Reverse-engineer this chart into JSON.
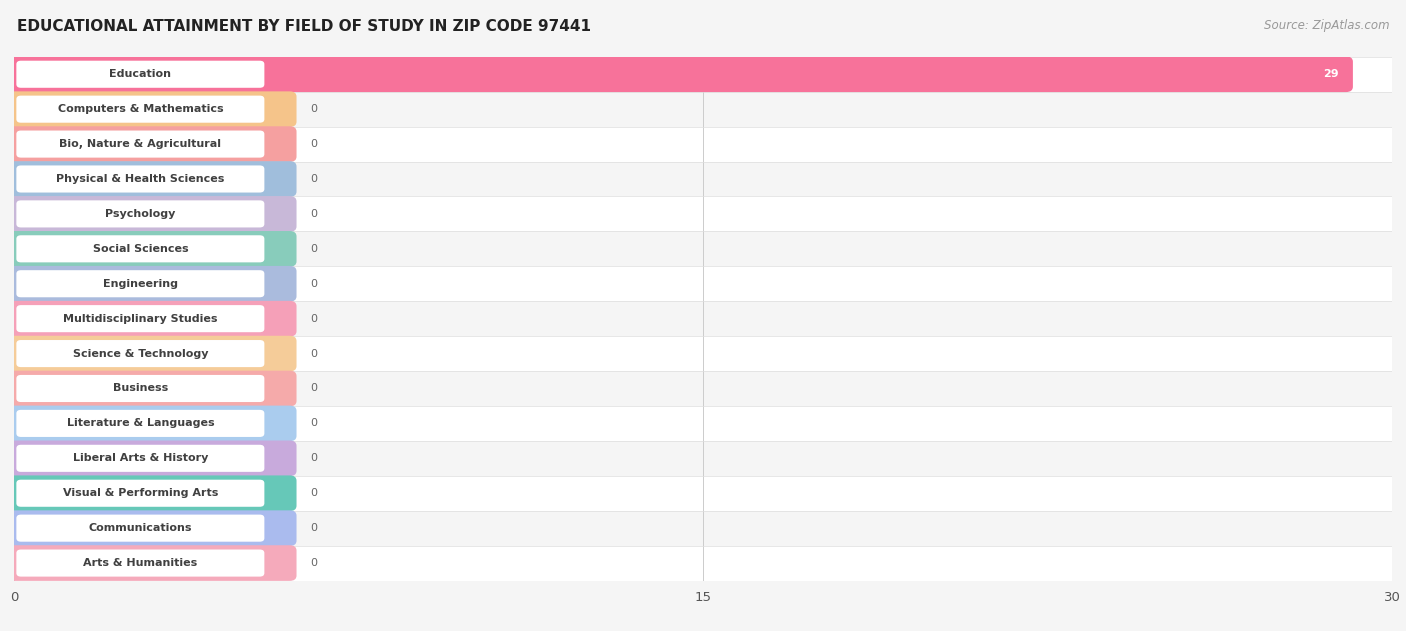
{
  "title": "EDUCATIONAL ATTAINMENT BY FIELD OF STUDY IN ZIP CODE 97441",
  "source": "Source: ZipAtlas.com",
  "categories": [
    "Education",
    "Computers & Mathematics",
    "Bio, Nature & Agricultural",
    "Physical & Health Sciences",
    "Psychology",
    "Social Sciences",
    "Engineering",
    "Multidisciplinary Studies",
    "Science & Technology",
    "Business",
    "Literature & Languages",
    "Liberal Arts & History",
    "Visual & Performing Arts",
    "Communications",
    "Arts & Humanities"
  ],
  "values": [
    29,
    0,
    0,
    0,
    0,
    0,
    0,
    0,
    0,
    0,
    0,
    0,
    0,
    0,
    0
  ],
  "bar_colors": [
    "#F7729A",
    "#F5C48A",
    "#F5A0A0",
    "#A0BEDC",
    "#C8B8D8",
    "#88CCBB",
    "#AABBDD",
    "#F5A0B8",
    "#F5CC99",
    "#F5AAAA",
    "#AACCEE",
    "#C8AADC",
    "#66C8B8",
    "#AABBEE",
    "#F5AABB"
  ],
  "row_bg_colors": [
    "#FAFAFA",
    "#FFFFFF",
    "#FAFAFA",
    "#FFFFFF",
    "#FAFAFA",
    "#FFFFFF",
    "#FAFAFA",
    "#FFFFFF",
    "#FAFAFA",
    "#FFFFFF",
    "#FAFAFA",
    "#FFFFFF",
    "#FAFAFA",
    "#FFFFFF",
    "#FAFAFA"
  ],
  "xlim": [
    0,
    30
  ],
  "xticks": [
    0,
    15,
    30
  ],
  "background_color": "#F5F5F5",
  "title_fontsize": 11,
  "source_fontsize": 8.5,
  "label_fontsize": 8,
  "value_fontsize": 8
}
